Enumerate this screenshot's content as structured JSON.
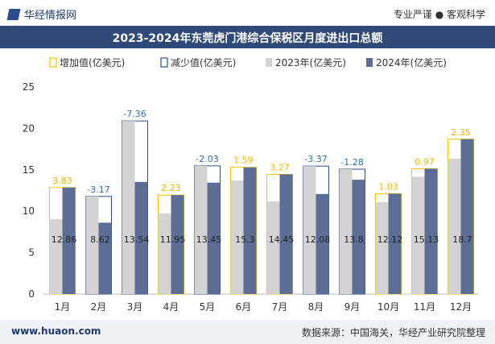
{
  "header": {
    "brand_name": "华经情报网",
    "slogan": "专业严谨 ● 客观科学"
  },
  "footer": {
    "website": "www.huaon.com",
    "source": "数据来源：中国海关，华经产业研究院整理"
  },
  "colors": {
    "bar_2023": "#d3d3d3",
    "bar_2024": "#5c6d96",
    "increase_outline": "#f2c200",
    "decrease_outline": "#2a4d8f",
    "increase_label": "#f2b400",
    "decrease_label": "#2f6fa8",
    "title_bg": "#2f4a78"
  },
  "chart_data": {
    "type": "bar",
    "title": "2023-2024年东莞虎门港综合保税区月度进出口总额",
    "categories": [
      "1月",
      "2月",
      "3月",
      "4月",
      "5月",
      "6月",
      "7月",
      "8月",
      "9月",
      "10月",
      "11月",
      "12月"
    ],
    "series": [
      {
        "name": "2023年(亿美元)",
        "values": [
          9.03,
          11.79,
          20.9,
          9.72,
          15.48,
          13.71,
          11.18,
          15.45,
          15.08,
          11.09,
          14.16,
          16.35
        ]
      },
      {
        "name": "2024年(亿美元)",
        "values": [
          12.86,
          8.62,
          13.54,
          11.95,
          13.45,
          15.3,
          14.45,
          12.08,
          13.8,
          12.12,
          15.13,
          18.7
        ]
      }
    ],
    "change": {
      "values": [
        3.83,
        -3.17,
        -7.36,
        2.23,
        -2.03,
        1.59,
        3.27,
        -3.37,
        -1.28,
        1.03,
        0.97,
        2.35
      ],
      "labels": [
        "3.83",
        "-3.17",
        "-7.36",
        "2.23",
        "-2.03",
        "1.59",
        "3.27",
        "-3.37",
        "-1.28",
        "1.03",
        "0.97",
        "2.35"
      ]
    },
    "value_labels_2024": [
      "12.86",
      "8.62",
      "13.54",
      "11.95",
      "13.45",
      "15.3",
      "14.45",
      "12.08",
      "13.8",
      "12.12",
      "15.13",
      "18.7"
    ],
    "legend": [
      "增加值(亿美元)",
      "减少值(亿美元)",
      "2023年(亿美元)",
      "2024年(亿美元)"
    ],
    "legend_position": "top",
    "yticks": [
      "0",
      "5",
      "10",
      "15",
      "20",
      "25"
    ],
    "ylim": [
      0,
      25
    ],
    "grid": false
  }
}
